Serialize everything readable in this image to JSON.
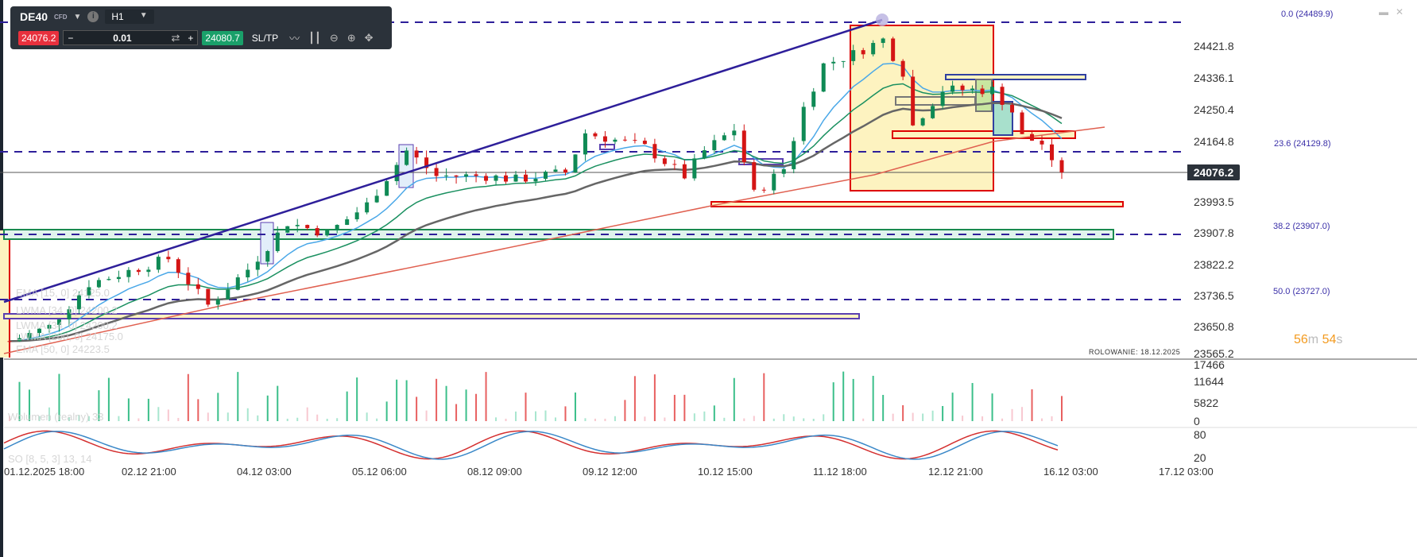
{
  "toolbar": {
    "symbol": "DE40",
    "symbol_type": "CFD",
    "timeframe": "H1",
    "sell_price": "24076.2",
    "quantity": "0.01",
    "buy_price": "24080.7",
    "sltp_label": "SL/TP",
    "minus": "−",
    "plus": "+"
  },
  "price_axis": [
    "24421.8",
    "24336.1",
    "24250.4",
    "24164.8",
    "23993.5",
    "23907.8",
    "23822.2",
    "23736.5",
    "23650.8",
    "23565.2"
  ],
  "current_price": "24076.2",
  "fib_levels": [
    {
      "label": "0.0 (24489.9)",
      "price": 24489.9
    },
    {
      "label": "23.6 (24129.8)",
      "price": 24129.8
    },
    {
      "label": "38.2 (23907.0)",
      "price": 23907.0
    },
    {
      "label": "50.0 (23727.0)",
      "price": 23727.0
    }
  ],
  "timer": {
    "min": "56",
    "min_unit": "m",
    "sec": "54",
    "sec_unit": "s"
  },
  "rollover": "ROLOWANIE: 18.12.2025",
  "legends": {
    "ema15": "EMA [15, 0] 24125.0",
    "lwma34a": "LWMA [34, 0] 24200.2",
    "lwma34b": "LWMA [34, 0] 24200.2",
    "lwma200": "LWMA [200, 0] 24175.0",
    "ema50": "EMA [50, 0] 24223.5",
    "volume": "Wolumen (realny) 33",
    "so": "SO [8, 5, 3] 13, 14"
  },
  "volume_axis": [
    "17466",
    "11644",
    "5822",
    "0"
  ],
  "osc_axis": [
    "80",
    "20"
  ],
  "time_axis": [
    "01.12.2025 18:00",
    "02.12 21:00",
    "04.12 03:00",
    "05.12 06:00",
    "08.12 09:00",
    "09.12 12:00",
    "10.12 15:00",
    "11.12 18:00",
    "12.12 21:00",
    "16.12 03:00",
    "17.12 03:00"
  ],
  "chart_data": {
    "type": "candlestick",
    "symbol": "DE40",
    "timeframe": "H1",
    "price_range": [
      23565.2,
      24489.9
    ],
    "close_path": [
      [
        0,
        23600
      ],
      [
        4,
        23640
      ],
      [
        8,
        23760
      ],
      [
        16,
        23830
      ],
      [
        20,
        23700
      ],
      [
        24,
        23800
      ],
      [
        28,
        23930
      ],
      [
        32,
        23900
      ],
      [
        36,
        23980
      ],
      [
        40,
        24130
      ],
      [
        43,
        24060
      ],
      [
        48,
        24060
      ],
      [
        51,
        24050
      ],
      [
        56,
        24070
      ],
      [
        58,
        24180
      ],
      [
        64,
        24140
      ],
      [
        68,
        24060
      ],
      [
        70,
        24130
      ],
      [
        73,
        24190
      ],
      [
        75,
        24010
      ],
      [
        78,
        24080
      ],
      [
        80,
        24250
      ],
      [
        82,
        24370
      ],
      [
        85,
        24400
      ],
      [
        88,
        24440
      ],
      [
        90,
        24350
      ],
      [
        91,
        24200
      ],
      [
        94,
        24300
      ],
      [
        99,
        24300
      ],
      [
        101,
        24240
      ],
      [
        102,
        24170
      ],
      [
        104,
        24150
      ],
      [
        105,
        24090
      ],
      [
        106,
        24076
      ]
    ]
  }
}
